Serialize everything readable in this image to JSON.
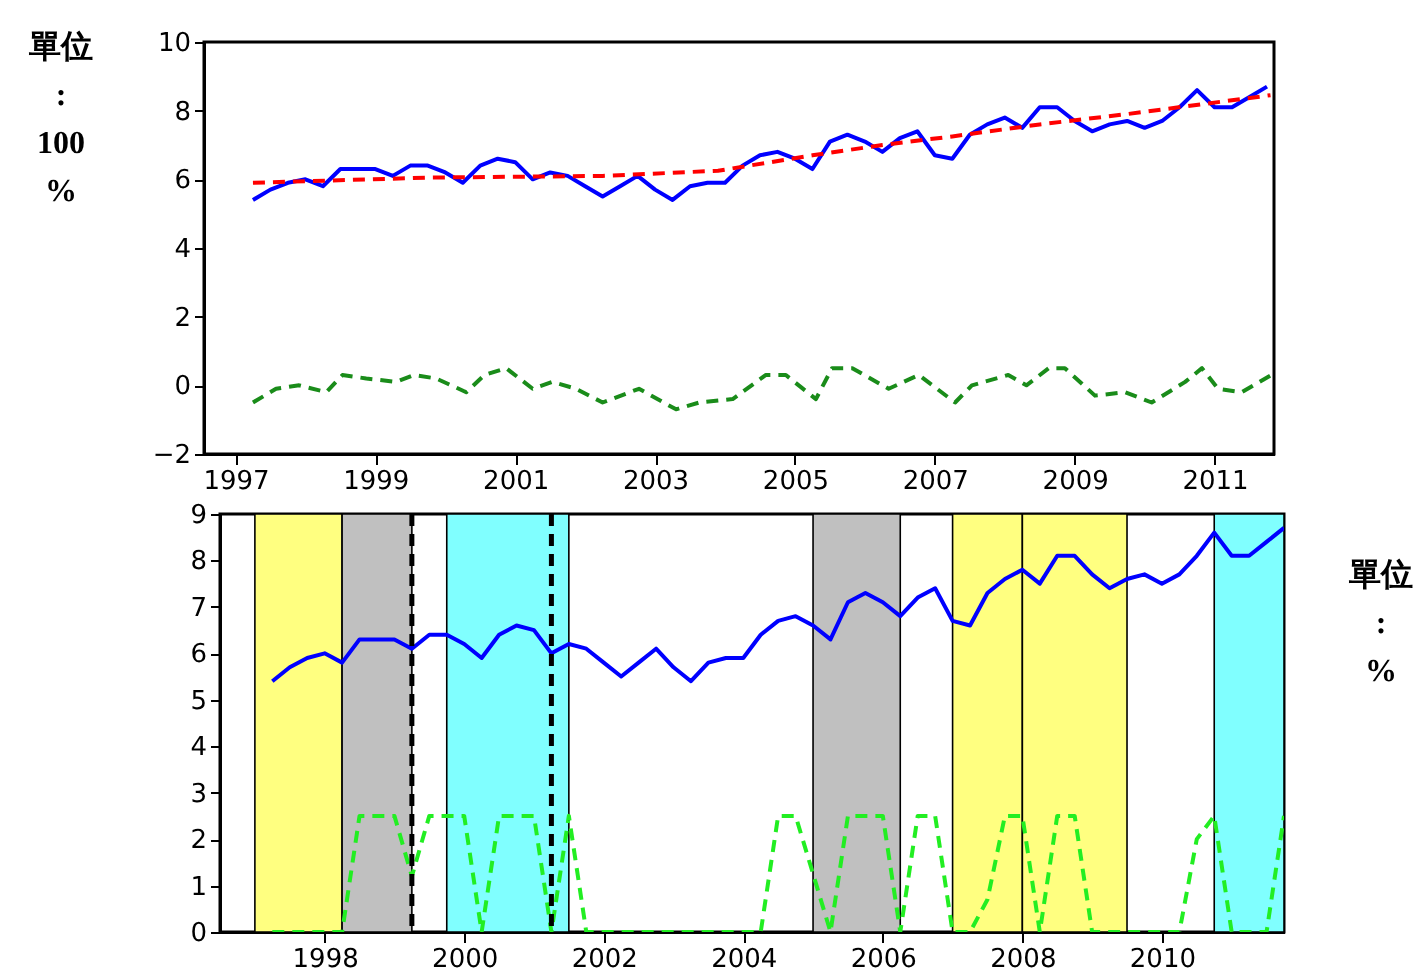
{
  "chart_data": [
    {
      "type": "line",
      "ylabel": "單位\n:\n100\n%",
      "xlim": [
        1996.55,
        2011.85
      ],
      "xticks": [
        1997,
        1999,
        2001,
        2003,
        2005,
        2007,
        2009,
        2011
      ],
      "ylim": [
        -2,
        10
      ],
      "yticks": [
        -2,
        0,
        2,
        4,
        6,
        8,
        10
      ],
      "series": [
        {
          "color": "#0000ff",
          "x": [
            1997.25,
            1997.5,
            1997.75,
            1998,
            1998.25,
            1998.5,
            1998.75,
            1999,
            1999.25,
            1999.5,
            1999.75,
            2000,
            2000.25,
            2000.5,
            2000.75,
            2001,
            2001.25,
            2001.5,
            2001.75,
            2002,
            2002.25,
            2002.5,
            2002.75,
            2003,
            2003.25,
            2003.5,
            2003.75,
            2004,
            2004.25,
            2004.5,
            2004.75,
            2005,
            2005.25,
            2005.5,
            2005.75,
            2006,
            2006.25,
            2006.5,
            2006.75,
            2007,
            2007.25,
            2007.5,
            2007.75,
            2008,
            2008.25,
            2008.5,
            2008.75,
            2009,
            2009.25,
            2009.5,
            2009.75,
            2010,
            2010.25,
            2010.5,
            2010.75,
            2011,
            2011.25,
            2011.5,
            2011.75
          ],
          "values": [
            5.4,
            5.7,
            5.9,
            6.0,
            5.8,
            6.3,
            6.3,
            6.3,
            6.1,
            6.4,
            6.4,
            6.2,
            5.9,
            6.4,
            6.6,
            6.5,
            6.0,
            6.2,
            6.1,
            5.8,
            5.5,
            5.8,
            6.1,
            5.7,
            5.4,
            5.8,
            5.9,
            5.9,
            6.4,
            6.7,
            6.8,
            6.6,
            6.3,
            7.1,
            7.3,
            7.1,
            6.8,
            7.2,
            7.4,
            6.7,
            6.6,
            7.3,
            7.6,
            7.8,
            7.5,
            8.1,
            8.1,
            7.7,
            7.4,
            7.6,
            7.7,
            7.5,
            7.7,
            8.1,
            8.6,
            8.1,
            8.1,
            8.4,
            8.7
          ]
        },
        {
          "type": "line",
          "color": "#ff0000",
          "line_style": "dashed",
          "x": [
            1997.25,
            1999.75,
            2002.25,
            2003.9,
            2005.25,
            2006.25,
            2007.25,
            2008.5,
            2009.75,
            2011.8
          ],
          "values": [
            5.9,
            6.05,
            6.1,
            6.25,
            6.7,
            7.0,
            7.25,
            7.6,
            7.9,
            8.45
          ]
        },
        {
          "color": "#1a8c1a",
          "line_style": "dashed",
          "x": [
            1997.25,
            1997.58,
            1997.91,
            1998.3,
            1998.53,
            1998.87,
            1999.3,
            1999.55,
            1999.87,
            2000.3,
            2000.56,
            2000.87,
            2001.25,
            2001.53,
            2001.87,
            2002.25,
            2002.77,
            2003.3,
            2003.63,
            2004.11,
            2004.58,
            2004.87,
            2005.3,
            2005.53,
            2005.82,
            2006.34,
            2006.77,
            2007.29,
            2007.53,
            2008.05,
            2008.31,
            2008.63,
            2008.86,
            2009.29,
            2009.72,
            2010.1,
            2010.58,
            2010.82,
            2011.05,
            2011.39,
            2011.81
          ],
          "values": [
            -0.5,
            -0.1,
            0,
            -0.2,
            0.3,
            0.2,
            0.1,
            0.3,
            0.2,
            -0.2,
            0.3,
            0.5,
            -0.1,
            0.1,
            -0.1,
            -0.5,
            -0.1,
            -0.7,
            -0.5,
            -0.4,
            0.3,
            0.3,
            -0.4,
            0.5,
            0.5,
            -0.1,
            0.3,
            -0.5,
            0,
            0.3,
            0,
            0.5,
            0.5,
            -0.3,
            -0.2,
            -0.5,
            0.1,
            0.5,
            -0.1,
            -0.2,
            0.3
          ]
        }
      ]
    },
    {
      "type": "line",
      "ylabel": "單位\n:\n%",
      "xlim": [
        1996.5,
        2011.75
      ],
      "xticks": [
        1998,
        2000,
        2002,
        2004,
        2006,
        2008,
        2010
      ],
      "ylim": [
        0,
        9
      ],
      "yticks": [
        0,
        1,
        2,
        3,
        4,
        5,
        6,
        7,
        8,
        9
      ],
      "bands": [
        {
          "axis": "x",
          "from": 1997,
          "to": 1998.25,
          "color": "#ffff80"
        },
        {
          "axis": "x",
          "from": 1998.25,
          "to": 1999.25,
          "color": "#c0c0c0"
        },
        {
          "axis": "x",
          "from": 1999.75,
          "to": 2001.5,
          "color": "#80ffff"
        },
        {
          "axis": "x",
          "from": 2005,
          "to": 2006.25,
          "color": "#c0c0c0"
        },
        {
          "axis": "x",
          "from": 2007,
          "to": 2008,
          "color": "#ffff80"
        },
        {
          "axis": "x",
          "from": 2008,
          "to": 2009.5,
          "color": "#ffff80"
        },
        {
          "axis": "x",
          "from": 2010.75,
          "to": 2011.75,
          "color": "#80ffff"
        }
      ],
      "ref_lines": [
        {
          "axis": "x",
          "value": 1999.25,
          "color": "#000000",
          "line_style": "dashed"
        },
        {
          "axis": "x",
          "value": 2001.25,
          "color": "#000000",
          "line_style": "dashed"
        }
      ],
      "series": [
        {
          "color": "#0000ff",
          "x": [
            1997.25,
            1997.5,
            1997.75,
            1998,
            1998.25,
            1998.5,
            1998.75,
            1999,
            1999.25,
            1999.5,
            1999.75,
            2000,
            2000.25,
            2000.5,
            2000.75,
            2001,
            2001.25,
            2001.5,
            2001.75,
            2002,
            2002.25,
            2002.5,
            2002.75,
            2003,
            2003.25,
            2003.5,
            2003.75,
            2004,
            2004.25,
            2004.5,
            2004.75,
            2005,
            2005.25,
            2005.5,
            2005.75,
            2006,
            2006.25,
            2006.5,
            2006.75,
            2007,
            2007.25,
            2007.5,
            2007.75,
            2008,
            2008.25,
            2008.5,
            2008.75,
            2009,
            2009.25,
            2009.5,
            2009.75,
            2010,
            2010.25,
            2010.5,
            2010.75,
            2011,
            2011.25,
            2011.5,
            2011.75
          ],
          "values": [
            5.4,
            5.7,
            5.9,
            6.0,
            5.8,
            6.3,
            6.3,
            6.3,
            6.1,
            6.4,
            6.4,
            6.2,
            5.9,
            6.4,
            6.6,
            6.5,
            6.0,
            6.2,
            6.1,
            5.8,
            5.5,
            5.8,
            6.1,
            5.7,
            5.4,
            5.8,
            5.9,
            5.9,
            6.4,
            6.7,
            6.8,
            6.6,
            6.3,
            7.1,
            7.3,
            7.1,
            6.8,
            7.2,
            7.4,
            6.7,
            6.6,
            7.3,
            7.6,
            7.8,
            7.5,
            8.1,
            8.1,
            7.7,
            7.4,
            7.6,
            7.7,
            7.5,
            7.7,
            8.1,
            8.6,
            8.1,
            8.1,
            8.4,
            8.7
          ]
        },
        {
          "color": "#22ee22",
          "line_style": "dashed",
          "x": [
            1997.25,
            1998.25,
            1998.5,
            1999,
            1999.25,
            1999.5,
            2000,
            2000.25,
            2000.5,
            2001,
            2001.25,
            2001.5,
            2001.75,
            2004.25,
            2004.5,
            2004.75,
            2005.25,
            2005.5,
            2006,
            2006.25,
            2006.5,
            2006.75,
            2007,
            2007.25,
            2007.5,
            2007.75,
            2008,
            2008.25,
            2008.5,
            2008.75,
            2009,
            2010.25,
            2010.5,
            2010.75,
            2011,
            2011.5,
            2011.75
          ],
          "values": [
            0,
            0,
            2.5,
            2.5,
            1.2,
            2.5,
            2.5,
            0,
            2.5,
            2.5,
            0,
            2.5,
            0,
            0,
            2.5,
            2.5,
            0,
            2.5,
            2.5,
            0,
            2.5,
            2.5,
            0,
            0,
            0.7,
            2.5,
            2.5,
            0,
            2.5,
            2.5,
            0,
            0,
            2,
            2.5,
            0,
            0,
            2.5
          ]
        }
      ]
    }
  ]
}
